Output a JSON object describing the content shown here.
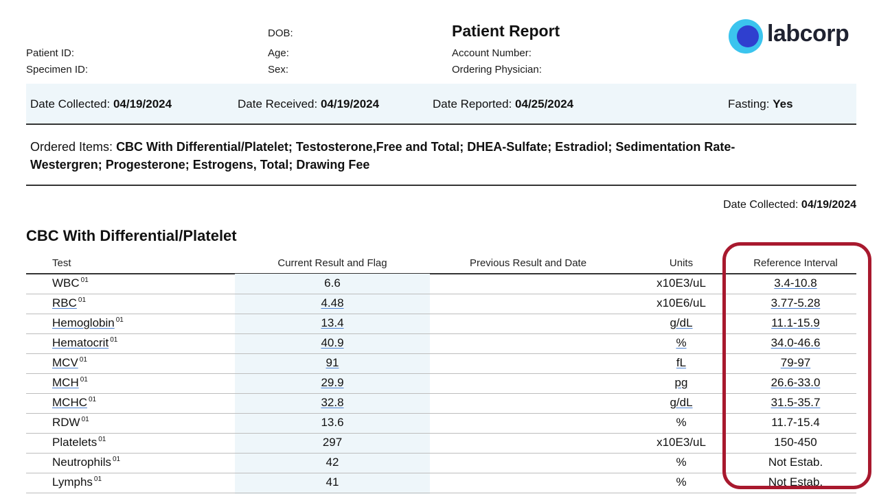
{
  "header": {
    "dob_label": "DOB:",
    "title": "Patient Report",
    "patient_id_label": "Patient ID:",
    "age_label": "Age:",
    "account_label": "Account Number:",
    "specimen_label": "Specimen ID:",
    "sex_label": "Sex:",
    "physician_label": "Ordering Physician:",
    "logo_text": "labcorp"
  },
  "band": {
    "collected_label": "Date Collected:",
    "collected_value": "04/19/2024",
    "received_label": "Date Received:",
    "received_value": "04/19/2024",
    "reported_label": "Date Reported:",
    "reported_value": "04/25/2024",
    "fasting_label": "Fasting:",
    "fasting_value": "Yes"
  },
  "ordered": {
    "label": "Ordered Items:",
    "value": "CBC With Differential/Platelet; Testosterone,Free and Total; DHEA-Sulfate; Estradiol; Sedimentation Rate-Westergren; Progesterone; Estrogens, Total; Drawing Fee"
  },
  "date_collected2": {
    "label": "Date Collected:",
    "value": "04/19/2024"
  },
  "section_title": "CBC With Differential/Platelet",
  "columns": {
    "test": "Test",
    "current": "Current Result and Flag",
    "previous": "Previous Result and Date",
    "units": "Units",
    "reference": "Reference Interval"
  },
  "rows": [
    {
      "test": "WBC",
      "sup": "01",
      "result": "6.6",
      "units": "x10E3/uL",
      "ref": "3.4-10.8"
    },
    {
      "test": "RBC",
      "sup": "01",
      "result": "4.48",
      "units": "x10E6/uL",
      "ref": "3.77-5.28"
    },
    {
      "test": "Hemoglobin",
      "sup": "01",
      "result": "13.4",
      "units": "g/dL",
      "ref": "11.1-15.9"
    },
    {
      "test": "Hematocrit",
      "sup": "01",
      "result": "40.9",
      "units": "%",
      "ref": "34.0-46.6"
    },
    {
      "test": "MCV",
      "sup": "01",
      "result": "91",
      "units": "fL",
      "ref": "79-97"
    },
    {
      "test": "MCH",
      "sup": "01",
      "result": "29.9",
      "units": "pg",
      "ref": "26.6-33.0"
    },
    {
      "test": "MCHC",
      "sup": "01",
      "result": "32.8",
      "units": "g/dL",
      "ref": "31.5-35.7"
    },
    {
      "test": "RDW",
      "sup": "01",
      "result": "13.6",
      "units": "%",
      "ref": "11.7-15.4"
    },
    {
      "test": "Platelets",
      "sup": "01",
      "result": "297",
      "units": "x10E3/uL",
      "ref": "150-450"
    },
    {
      "test": "Neutrophils",
      "sup": "01",
      "result": "42",
      "units": "%",
      "ref": "Not Estab."
    },
    {
      "test": "Lymphs",
      "sup": "01",
      "result": "41",
      "units": "%",
      "ref": "Not Estab."
    }
  ],
  "colors": {
    "highlight": "#a8192e",
    "logo_outer": "#3bc4ee",
    "logo_inner": "#2f3fcf",
    "band": "#eef6fa"
  }
}
